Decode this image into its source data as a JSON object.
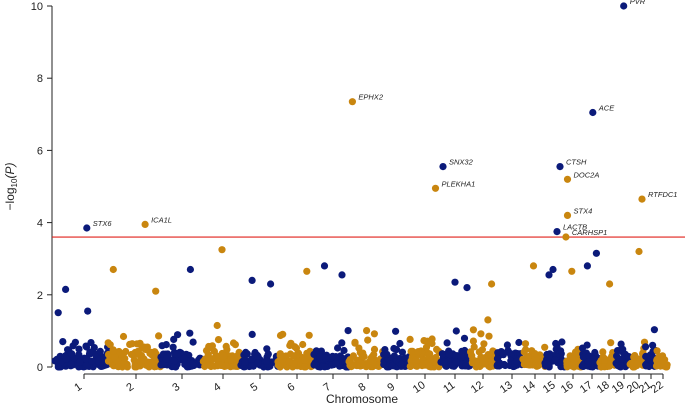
{
  "chart_data": {
    "type": "scatter",
    "title": "",
    "xlabel": "Chromosome",
    "ylabel_main": "−log",
    "ylabel_sub": "10",
    "ylabel_arg": "(P)",
    "ylim": [
      0,
      10
    ],
    "yticks": [
      0,
      2,
      4,
      6,
      8,
      10
    ],
    "categories": [
      "1",
      "2",
      "3",
      "4",
      "5",
      "6",
      "7",
      "8",
      "9",
      "10",
      "11",
      "12",
      "13",
      "14",
      "15",
      "16",
      "17",
      "18",
      "19",
      "20",
      "21",
      "22"
    ],
    "colors": {
      "odd": "#0b1a7a",
      "even": "#c9860f",
      "threshold": "#e0201b"
    },
    "significance_threshold": 3.6,
    "labeled_points": [
      {
        "gene": "PVR",
        "chromosome": "19",
        "pos": 0.55,
        "y": 10.0
      },
      {
        "gene": "EPHX2",
        "chromosome": "8",
        "pos": 0.1,
        "y": 7.35
      },
      {
        "gene": "ACE",
        "chromosome": "17",
        "pos": 0.6,
        "y": 7.05
      },
      {
        "gene": "SNX32",
        "chromosome": "11",
        "pos": 0.1,
        "y": 5.55
      },
      {
        "gene": "CTSH",
        "chromosome": "15",
        "pos": 0.75,
        "y": 5.55
      },
      {
        "gene": "DOC2A",
        "chromosome": "16",
        "pos": 0.15,
        "y": 5.2
      },
      {
        "gene": "PLEKHA1",
        "chromosome": "10",
        "pos": 0.85,
        "y": 4.95
      },
      {
        "gene": "RTFDC1",
        "chromosome": "20",
        "pos": 0.8,
        "y": 4.65
      },
      {
        "gene": "STX4",
        "chromosome": "16",
        "pos": 0.15,
        "y": 4.2
      },
      {
        "gene": "ICA1L",
        "chromosome": "2",
        "pos": 0.7,
        "y": 3.95
      },
      {
        "gene": "STX6",
        "chromosome": "1",
        "pos": 0.6,
        "y": 3.85
      },
      {
        "gene": "LACTB",
        "chromosome": "15",
        "pos": 0.6,
        "y": 3.75
      },
      {
        "gene": "CARHSP1",
        "chromosome": "16",
        "pos": 0.05,
        "y": 3.6
      }
    ],
    "extra_points": [
      {
        "chromosome": "4",
        "pos": 0.5,
        "y": 3.25
      },
      {
        "chromosome": "20",
        "pos": 0.6,
        "y": 3.2
      },
      {
        "chromosome": "17",
        "pos": 0.8,
        "y": 3.15
      },
      {
        "chromosome": "7",
        "pos": 0.3,
        "y": 2.8
      },
      {
        "chromosome": "14",
        "pos": 0.5,
        "y": 2.8
      },
      {
        "chromosome": "17",
        "pos": 0.3,
        "y": 2.8
      },
      {
        "chromosome": "2",
        "pos": 0.1,
        "y": 2.7
      },
      {
        "chromosome": "3",
        "pos": 0.7,
        "y": 2.7
      },
      {
        "chromosome": "15",
        "pos": 0.4,
        "y": 2.7
      },
      {
        "chromosome": "16",
        "pos": 0.4,
        "y": 2.65
      },
      {
        "chromosome": "6",
        "pos": 0.8,
        "y": 2.65
      },
      {
        "chromosome": "7",
        "pos": 0.8,
        "y": 2.55
      },
      {
        "chromosome": "15",
        "pos": 0.2,
        "y": 2.55
      },
      {
        "chromosome": "5",
        "pos": 0.3,
        "y": 2.4
      },
      {
        "chromosome": "11",
        "pos": 0.5,
        "y": 2.35
      },
      {
        "chromosome": "12",
        "pos": 0.8,
        "y": 2.3
      },
      {
        "chromosome": "5",
        "pos": 0.8,
        "y": 2.3
      },
      {
        "chromosome": "18",
        "pos": 0.6,
        "y": 2.3
      },
      {
        "chromosome": "1",
        "pos": 0.2,
        "y": 2.15
      },
      {
        "chromosome": "11",
        "pos": 0.9,
        "y": 2.2
      },
      {
        "chromosome": "2",
        "pos": 0.9,
        "y": 2.1
      }
    ],
    "seed": 7
  }
}
